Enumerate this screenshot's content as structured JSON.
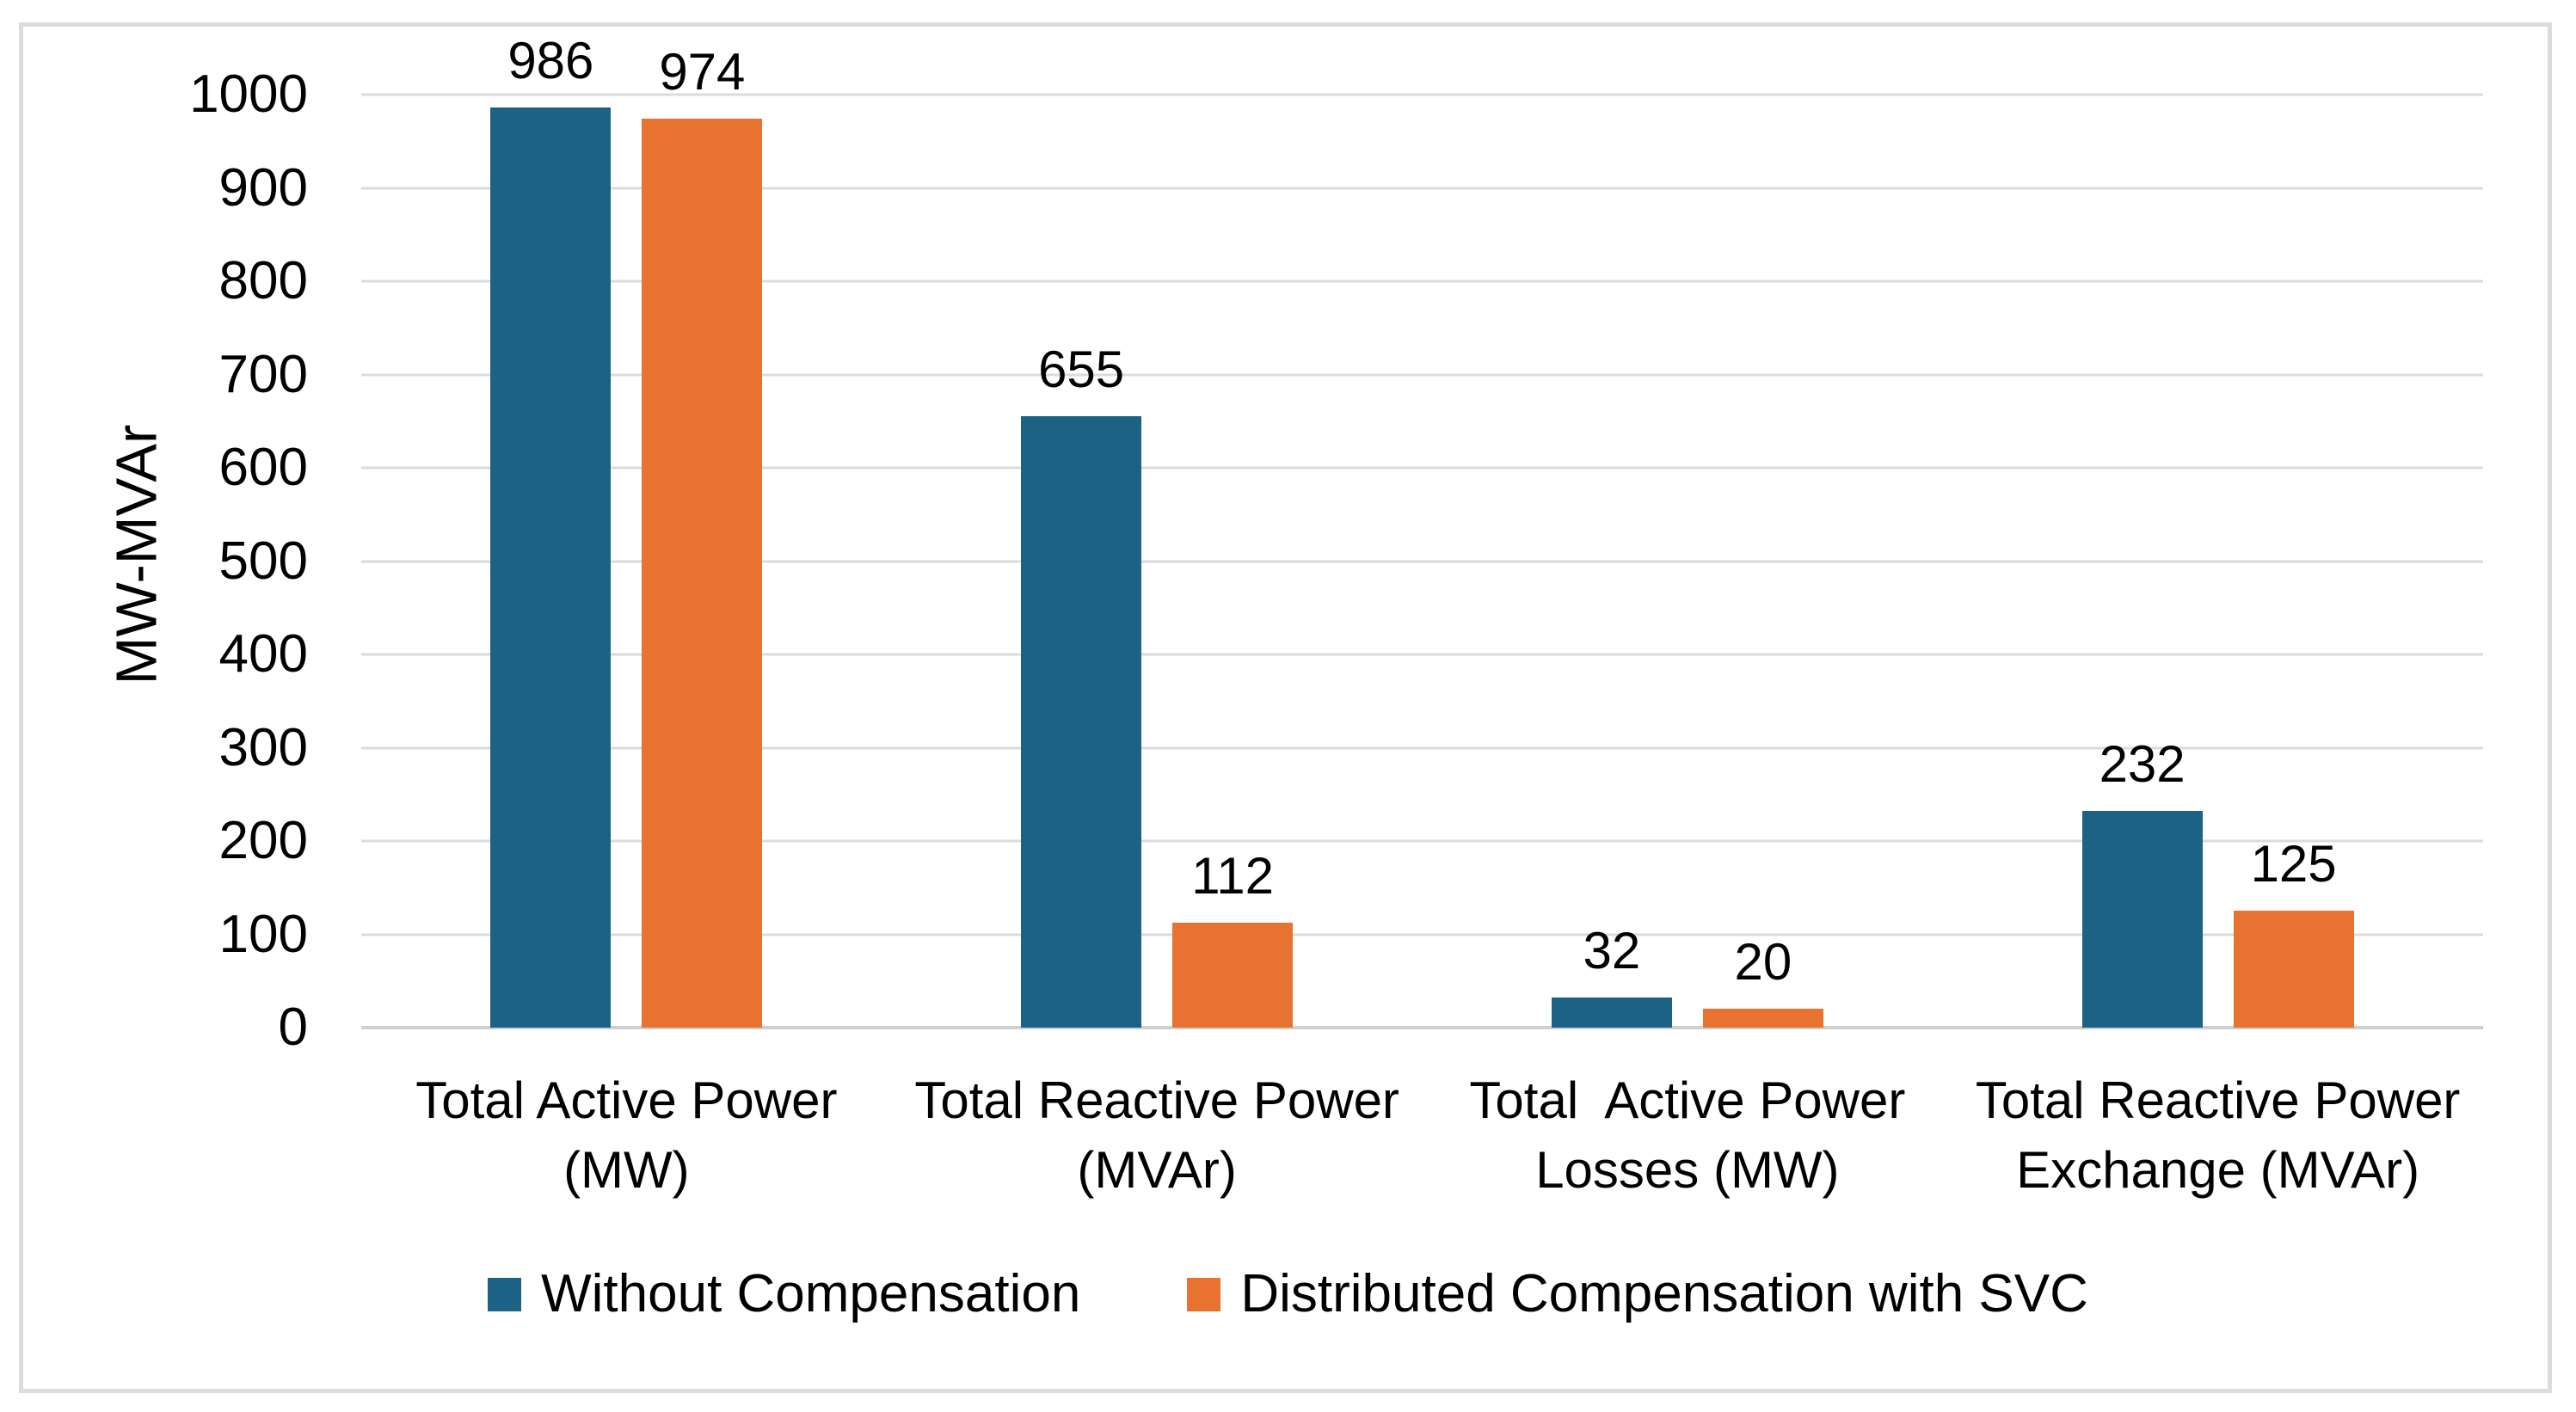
{
  "chart_data": {
    "type": "bar",
    "ylabel": "MW-MVAr",
    "ylim": [
      0,
      1000
    ],
    "ytick_interval": 100,
    "grid": true,
    "legend_position": "bottom",
    "data_labels": "outside-end",
    "categories": [
      "Total Active Power\n(MW)",
      "Total Reactive Power\n(MVAr)",
      "Total  Active Power\nLosses (MW)",
      "Total Reactive Power\nExchange (MVAr)"
    ],
    "series": [
      {
        "name": "Without Compensation",
        "color": "#1C6284",
        "values": [
          986,
          655,
          32,
          232
        ]
      },
      {
        "name": "Distributed Compensation with SVC",
        "color": "#E8722F",
        "values": [
          974,
          112,
          20,
          125
        ]
      }
    ],
    "colors": {
      "background": "#FFFFFF",
      "frame_border": "#DCDCDC",
      "gridline": "#DBDBDB",
      "axis_line": "#CFCFCF",
      "text": "#000000",
      "series_1": "#1C6284",
      "series_2": "#E8722F"
    }
  }
}
